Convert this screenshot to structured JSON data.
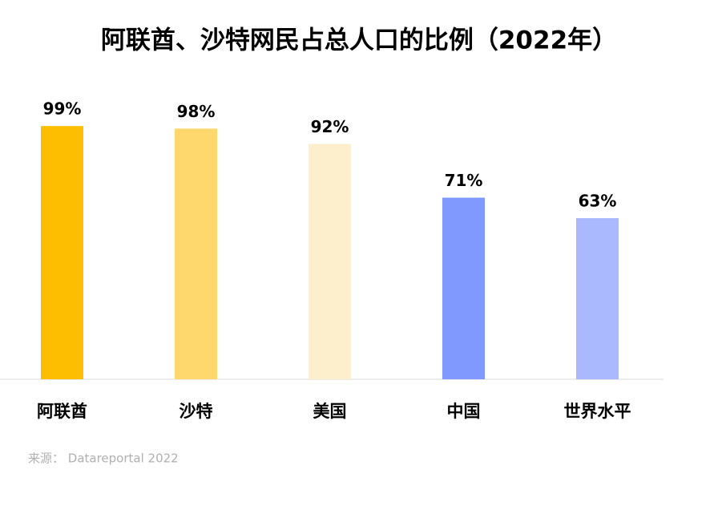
{
  "chart_data": {
    "type": "bar",
    "title": "阿联酋、沙特网民占总人口的比例（2022年）",
    "categories": [
      "阿联酋",
      "沙特",
      "美国",
      "中国",
      "世界水平"
    ],
    "values": [
      99,
      98,
      92,
      71,
      63
    ],
    "value_labels": [
      "99%",
      "98%",
      "92%",
      "71%",
      "63%"
    ],
    "colors": [
      "#fdbd00",
      "#fed86c",
      "#fdefcb",
      "#7f99fe",
      "#aab9fe"
    ],
    "ylim": [
      0,
      100
    ],
    "source": "来源： Datareportal 2022"
  }
}
